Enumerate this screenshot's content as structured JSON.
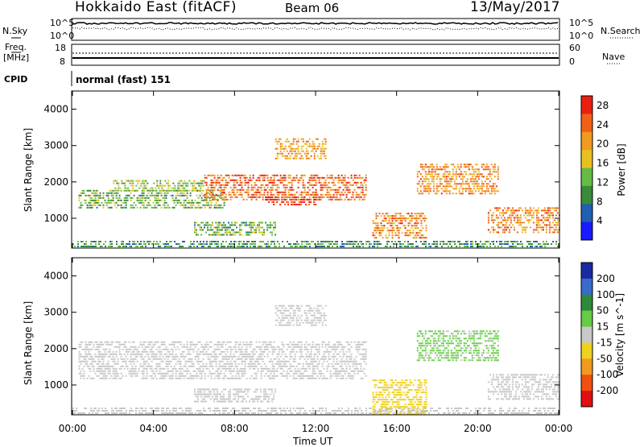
{
  "header": {
    "radar_title": "Hokkaido East (fitACF)",
    "beam": "Beam 06",
    "date": "13/May/2017"
  },
  "status_strip": {
    "nsky_label": "N.Sky",
    "nsearch_label": "N.Search",
    "noise_ticks_left": [
      "10^5",
      "10^0"
    ],
    "noise_ticks_right": [
      "10^5",
      "10^0"
    ],
    "freq_label_line1": "Freq.",
    "freq_label_line2": "[MHz]",
    "freq_ticks": [
      "18",
      "8"
    ],
    "nave_label": "Nave",
    "nave_ticks": [
      "60",
      "0"
    ],
    "cpid_label": "CPID",
    "cpid_value": "normal (fast) 151"
  },
  "colors": {
    "power_scale": [
      "#1a1aff",
      "#2060b0",
      "#3a8a3a",
      "#66bb44",
      "#e8c020",
      "#f09a20",
      "#f06018",
      "#e82010"
    ],
    "velocity_scale": [
      "#1a2aa0",
      "#3a6acc",
      "#2e8a3a",
      "#66cc44",
      "#c8c8c8",
      "#f0d020",
      "#f09a20",
      "#f05010",
      "#e01010"
    ]
  },
  "chart_data": [
    {
      "type": "heatmap",
      "name": "Power",
      "ylabel": "Slant Range [km]",
      "xlabel": "Time UT",
      "x_ticks": [
        "00:00",
        "04:00",
        "08:00",
        "12:00",
        "16:00",
        "20:00",
        "00:00"
      ],
      "xlim_hours": [
        0,
        24
      ],
      "y_ticks": [
        1000,
        2000,
        3000,
        4000
      ],
      "ylim": [
        180,
        4500
      ],
      "colorbar_label": "Power [dB]",
      "colorbar_ticks": [
        4,
        8,
        12,
        16,
        20,
        24,
        28
      ],
      "colorbar_range": [
        0,
        30
      ],
      "echo_regions": [
        {
          "t": [
            0.0,
            24.0
          ],
          "r": [
            200,
            380
          ],
          "value": 10
        },
        {
          "t": [
            0.3,
            7.5
          ],
          "r": [
            1280,
            1780
          ],
          "value": 12
        },
        {
          "t": [
            2.0,
            6.5
          ],
          "r": [
            1750,
            2050
          ],
          "value": 14
        },
        {
          "t": [
            6.5,
            14.5
          ],
          "r": [
            1500,
            2200
          ],
          "value": 24
        },
        {
          "t": [
            9.5,
            12.0
          ],
          "r": [
            1380,
            1600
          ],
          "value": 28
        },
        {
          "t": [
            10.0,
            12.5
          ],
          "r": [
            2650,
            3200
          ],
          "value": 20
        },
        {
          "t": [
            6.0,
            10.0
          ],
          "r": [
            550,
            900
          ],
          "value": 12
        },
        {
          "t": [
            14.8,
            17.5
          ],
          "r": [
            450,
            1150
          ],
          "value": 22
        },
        {
          "t": [
            17.0,
            21.0
          ],
          "r": [
            1700,
            2500
          ],
          "value": 22
        },
        {
          "t": [
            20.5,
            24.0
          ],
          "r": [
            600,
            1300
          ],
          "value": 22
        }
      ]
    },
    {
      "type": "heatmap",
      "name": "Velocity",
      "ylabel": "Slant Range [km]",
      "xlabel": "Time UT",
      "x_ticks": [
        "00:00",
        "04:00",
        "08:00",
        "12:00",
        "16:00",
        "20:00",
        "00:00"
      ],
      "xlim_hours": [
        0,
        24
      ],
      "y_ticks": [
        1000,
        2000,
        3000,
        4000
      ],
      "ylim": [
        180,
        4500
      ],
      "colorbar_label": "Velocity [m s^-1]",
      "colorbar_ticks": [
        200,
        100,
        50,
        15,
        -15,
        -50,
        -100,
        -200
      ],
      "colorbar_range": [
        -250,
        250
      ],
      "echo_regions": [
        {
          "t": [
            0.0,
            24.0
          ],
          "r": [
            200,
            380
          ],
          "value": 0
        },
        {
          "t": [
            0.3,
            14.5
          ],
          "r": [
            1200,
            2200
          ],
          "value": 0
        },
        {
          "t": [
            6.0,
            10.0
          ],
          "r": [
            550,
            900
          ],
          "value": 0
        },
        {
          "t": [
            10.0,
            12.5
          ],
          "r": [
            2650,
            3200
          ],
          "value": 0
        },
        {
          "t": [
            14.8,
            17.5
          ],
          "r": [
            200,
            1150
          ],
          "value": -60
        },
        {
          "t": [
            17.0,
            21.0
          ],
          "r": [
            1700,
            2500
          ],
          "value": 40
        },
        {
          "t": [
            20.5,
            24.0
          ],
          "r": [
            600,
            1300
          ],
          "value": 0
        }
      ]
    }
  ]
}
